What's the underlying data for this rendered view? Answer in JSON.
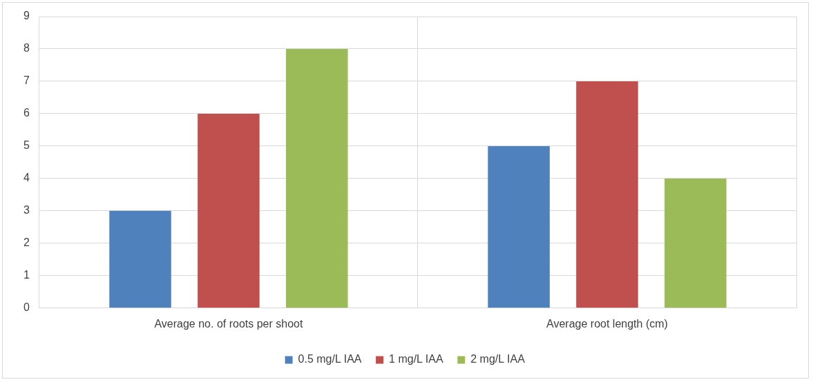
{
  "chart_data": {
    "type": "bar",
    "categories": [
      "Average no. of roots per shoot",
      "Average root length (cm)"
    ],
    "series": [
      {
        "name": "0.5 mg/L IAA",
        "color": "#4f81bd",
        "values": [
          3,
          5
        ]
      },
      {
        "name": "1 mg/L IAA",
        "color": "#c0504d",
        "values": [
          6,
          7
        ]
      },
      {
        "name": "2 mg/L IAA",
        "color": "#9bbb59",
        "values": [
          8,
          4
        ]
      }
    ],
    "ylim": [
      0,
      9
    ],
    "yticks": [
      0,
      1,
      2,
      3,
      4,
      5,
      6,
      7,
      8,
      9
    ],
    "grid": true,
    "legend": "bottom"
  }
}
